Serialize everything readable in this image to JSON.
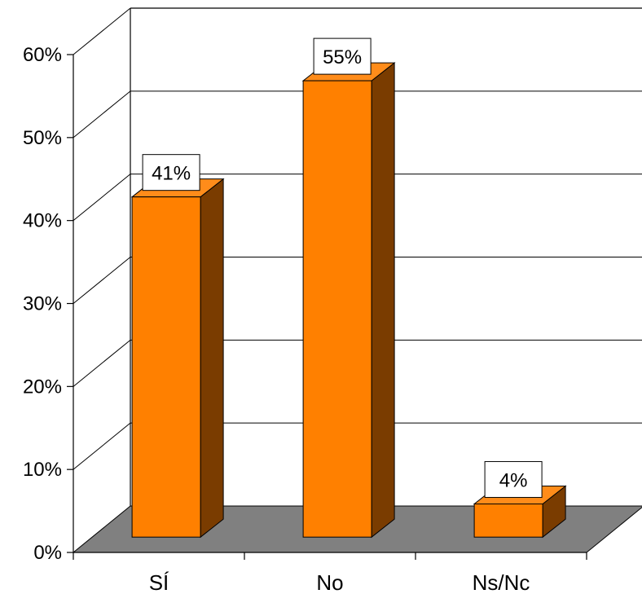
{
  "chart_data": {
    "type": "bar",
    "style": "3d-column",
    "categories": [
      "SÍ",
      "No",
      "Ns/Nc"
    ],
    "values": [
      41,
      55,
      4
    ],
    "data_labels": [
      "41%",
      "55%",
      "4%"
    ],
    "ylim": [
      0,
      60
    ],
    "yticks": [
      0,
      10,
      20,
      30,
      40,
      50,
      60
    ],
    "ytick_labels": [
      "0%",
      "10%",
      "20%",
      "30%",
      "40%",
      "50%",
      "60%"
    ],
    "title": "",
    "xlabel": "",
    "ylabel": "",
    "grid": true,
    "legend": "none",
    "colors": {
      "bar_front": "#ff8000",
      "bar_top": "#ff8c1a",
      "bar_side": "#7a3c00",
      "floor": "#808080",
      "wall": "#ffffff",
      "grid": "#000000"
    }
  }
}
